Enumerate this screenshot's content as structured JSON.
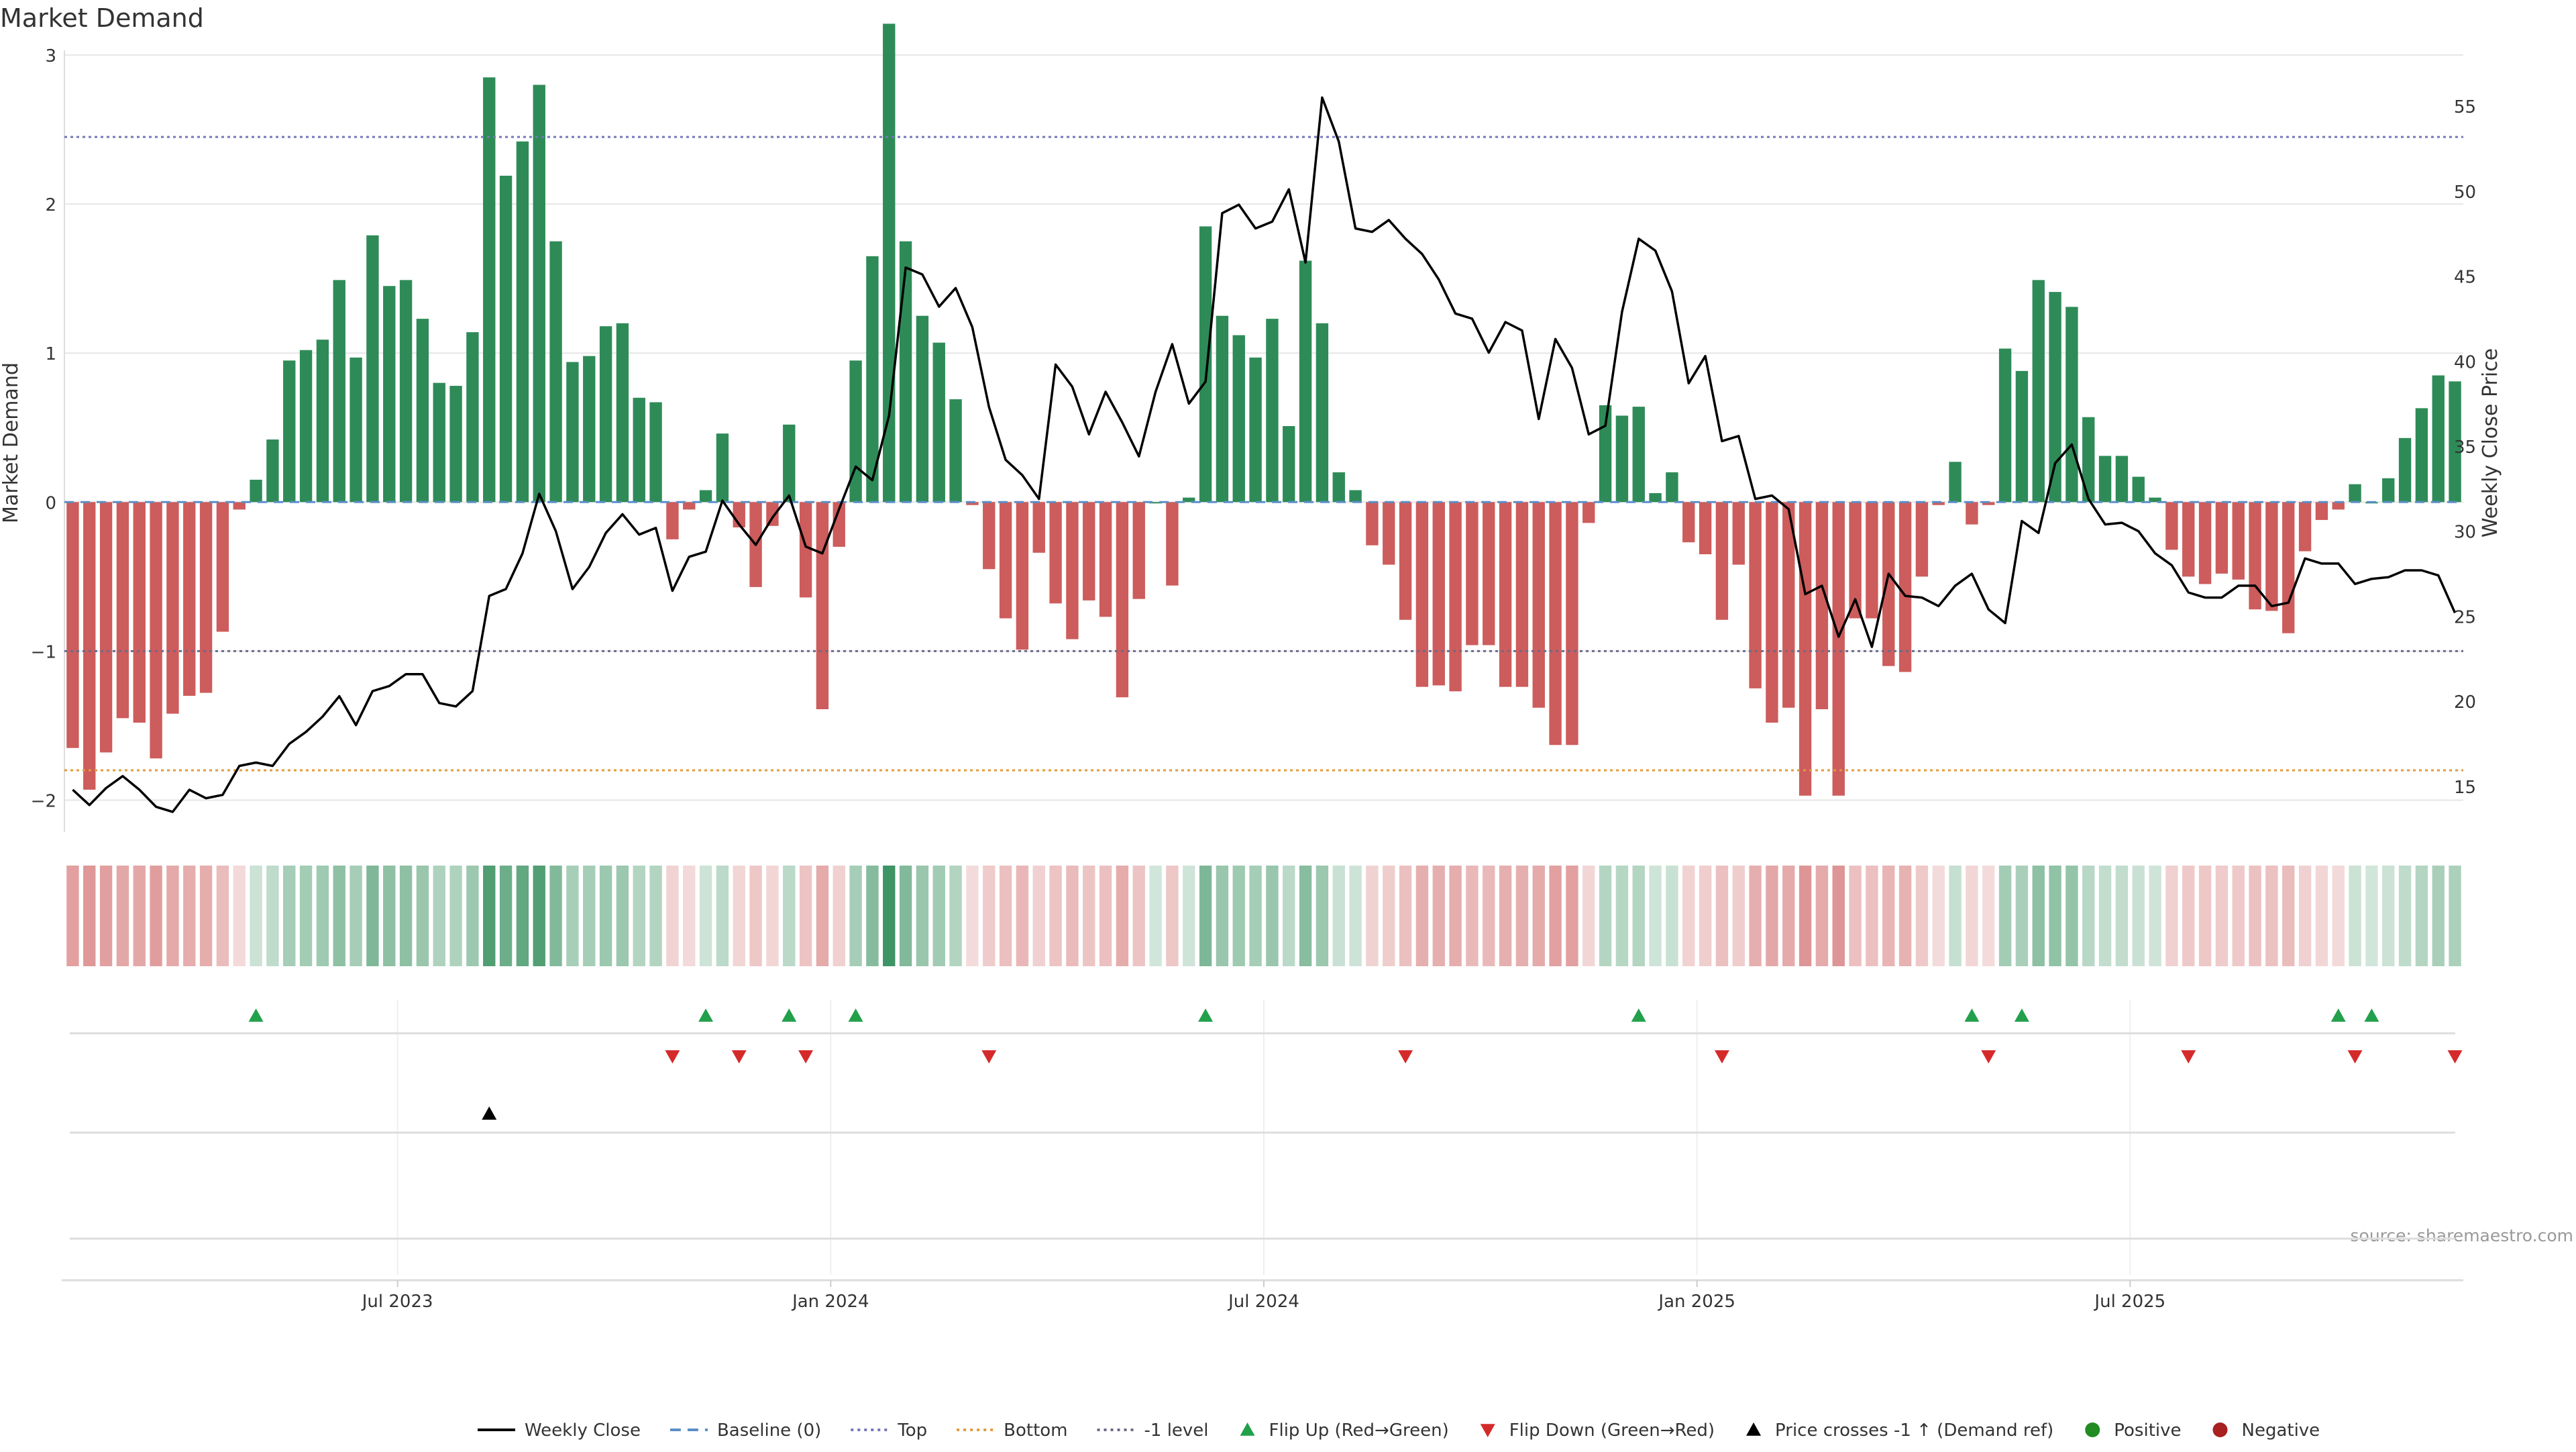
{
  "chart_data": {
    "type": "bar",
    "title": "Market Demand",
    "ylabel": "Market Demand",
    "y2label": "Weekly Close Price",
    "ylim": [
      -2.25,
      3.0
    ],
    "y_ticks": [
      -2,
      -1,
      0,
      1,
      2,
      3
    ],
    "y2lim": [
      12.0,
      58.0
    ],
    "y2_ticks": [
      15,
      20,
      25,
      30,
      35,
      40,
      45,
      50,
      55
    ],
    "reference_lines": {
      "top": 2.45,
      "baseline": 0,
      "minus_one": -1,
      "bottom": -1.8
    },
    "x_ticks": [
      {
        "label": "Jul 2023",
        "index": 20
      },
      {
        "label": "Jan 2024",
        "index": 46
      },
      {
        "label": "Jul 2024",
        "index": 72
      },
      {
        "label": "Jan 2025",
        "index": 98
      },
      {
        "label": "Jul 2025",
        "index": 124
      }
    ],
    "demand": [
      -1.65,
      -1.93,
      -1.68,
      -1.45,
      -1.48,
      -1.72,
      -1.42,
      -1.3,
      -1.28,
      -0.87,
      -0.05,
      0.15,
      0.42,
      0.95,
      1.02,
      1.09,
      1.49,
      0.97,
      1.79,
      1.45,
      1.49,
      1.23,
      0.8,
      0.78,
      1.14,
      2.85,
      2.19,
      2.42,
      2.8,
      1.75,
      0.94,
      0.98,
      1.18,
      1.2,
      0.7,
      0.67,
      -0.25,
      -0.05,
      0.08,
      0.46,
      -0.17,
      -0.57,
      -0.16,
      0.52,
      -0.64,
      -1.39,
      -0.3,
      0.95,
      1.65,
      3.21,
      1.75,
      1.25,
      1.07,
      0.69,
      -0.02,
      -0.45,
      -0.78,
      -0.99,
      -0.34,
      -0.68,
      -0.92,
      -0.66,
      -0.77,
      -1.31,
      -0.65,
      0.0,
      -0.56,
      0.03,
      1.85,
      1.25,
      1.12,
      0.97,
      1.23,
      0.51,
      1.62,
      1.2,
      0.2,
      0.08,
      -0.29,
      -0.42,
      -0.79,
      -1.24,
      -1.23,
      -1.27,
      -0.96,
      -0.96,
      -1.24,
      -1.24,
      -1.38,
      -1.63,
      -1.63,
      -0.14,
      0.65,
      0.58,
      0.64,
      0.06,
      0.2,
      -0.27,
      -0.35,
      -0.79,
      -0.42,
      -1.25,
      -1.48,
      -1.38,
      -1.97,
      -1.39,
      -1.97,
      -0.78,
      -0.78,
      -1.1,
      -1.14,
      -0.5,
      -0.02,
      0.27,
      -0.15,
      -0.02,
      1.03,
      0.88,
      1.49,
      1.41,
      1.31,
      0.57,
      0.31,
      0.31,
      0.17,
      0.03,
      -0.32,
      -0.5,
      -0.55,
      -0.48,
      -0.52,
      -0.72,
      -0.73,
      -0.88,
      -0.33,
      -0.12,
      -0.05,
      0.12,
      0.0,
      0.16,
      0.43,
      0.63,
      0.85,
      0.81
    ],
    "weekly_close": [
      14.8,
      13.9,
      14.9,
      15.6,
      14.8,
      13.8,
      13.5,
      14.8,
      14.3,
      14.5,
      16.2,
      16.4,
      16.2,
      17.5,
      18.2,
      19.1,
      20.3,
      18.6,
      20.6,
      20.9,
      21.6,
      21.6,
      19.9,
      19.7,
      20.6,
      26.2,
      26.6,
      28.7,
      32.2,
      30.0,
      26.6,
      27.9,
      29.9,
      31.0,
      29.8,
      30.2,
      26.5,
      28.5,
      28.8,
      31.8,
      30.4,
      29.2,
      30.8,
      32.1,
      29.1,
      28.7,
      31.3,
      33.8,
      33.0,
      36.8,
      45.5,
      45.1,
      43.2,
      44.3,
      42.0,
      37.3,
      34.2,
      33.3,
      31.9,
      39.8,
      38.5,
      35.7,
      38.2,
      36.4,
      34.4,
      38.2,
      41.0,
      37.5,
      38.8,
      48.7,
      49.2,
      47.8,
      48.2,
      50.1,
      45.8,
      55.5,
      52.9,
      47.8,
      47.6,
      48.3,
      47.2,
      46.3,
      44.8,
      42.8,
      42.5,
      40.5,
      42.3,
      41.8,
      36.6,
      41.3,
      39.6,
      35.7,
      36.2,
      42.9,
      47.2,
      46.5,
      44.1,
      38.7,
      40.3,
      35.3,
      35.6,
      31.9,
      32.1,
      31.3,
      26.3,
      26.8,
      23.8,
      26.0,
      23.2,
      27.5,
      26.2,
      26.1,
      25.6,
      26.8,
      27.5,
      25.4,
      24.6,
      30.6,
      29.9,
      34.0,
      35.1,
      31.9,
      30.4,
      30.5,
      30.0,
      28.7,
      28.0,
      26.4,
      26.1,
      26.1,
      26.8,
      26.8,
      25.6,
      25.8,
      28.4,
      28.1,
      28.1,
      26.9,
      27.2,
      27.3,
      27.7,
      27.7,
      27.4,
      25.2
    ],
    "flip_up_index": [
      11,
      38,
      43,
      47,
      68,
      94,
      114,
      117,
      136,
      138
    ],
    "flip_down_index": [
      36,
      40,
      44,
      55,
      80,
      99,
      115,
      127,
      137,
      143
    ],
    "price_cross_index": [
      25
    ],
    "legend": [
      {
        "label": "Weekly Close",
        "marker": "line"
      },
      {
        "label": "Baseline (0)",
        "marker": "dashed"
      },
      {
        "label": "Top",
        "marker": "dotted-purple"
      },
      {
        "label": "Bottom",
        "marker": "dotted-orange"
      },
      {
        "label": "-1 level",
        "marker": "dotted-grey"
      },
      {
        "label": "Flip Up (Red→Green)",
        "marker": "triangle-up-green"
      },
      {
        "label": "Flip Down (Green→Red)",
        "marker": "triangle-down-red"
      },
      {
        "label": "Price crosses -1 ↑ (Demand ref)",
        "marker": "triangle-up-black"
      },
      {
        "label": "Positive",
        "marker": "circle-green"
      },
      {
        "label": "Negative",
        "marker": "circle-red"
      }
    ],
    "legend_position": "bottom-center",
    "source": "source: sharemaestro.com"
  },
  "colors": {
    "positive": "#2e8b57",
    "negative": "#cd5c5c",
    "line": "#000000",
    "top": "#7777bb",
    "bottom": "#e39b3a",
    "minus_one": "#6b6b8a",
    "baseline": "#5a8fc7",
    "flip_up": "#22a04b",
    "flip_down": "#d42a2a",
    "text": "#333333",
    "grid": "#e6e6e6"
  }
}
